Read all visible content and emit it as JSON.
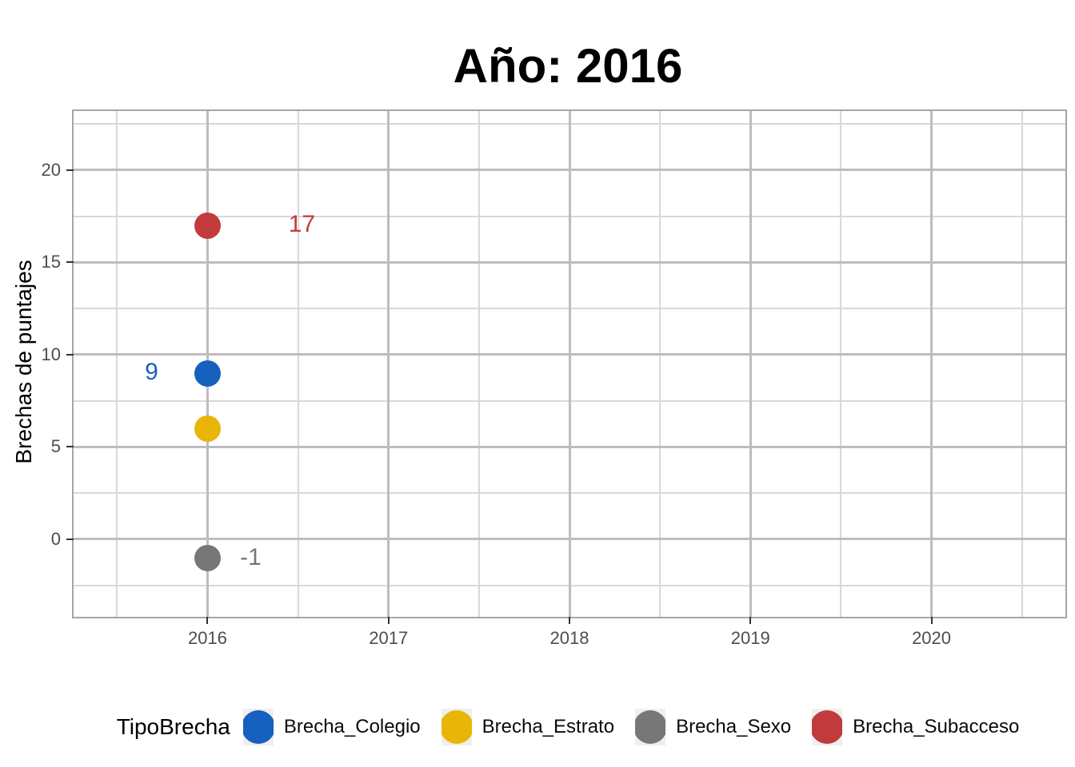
{
  "chart_data": {
    "type": "scatter",
    "title": "Año: 2016",
    "xlabel": "",
    "ylabel": "Brechas de puntajes",
    "legend_title": "TipoBrecha",
    "legend_position": "bottom",
    "grid": true,
    "x_domain": [
      2015.26,
      2020.74
    ],
    "y_domain": [
      -4.2,
      23.2
    ],
    "x_ticks": [
      2016,
      2017,
      2018,
      2019,
      2020
    ],
    "x_minor_ticks": [
      2015.5,
      2016.5,
      2017.5,
      2018.5,
      2019.5,
      2020.5
    ],
    "y_ticks": [
      0,
      5,
      10,
      15,
      20
    ],
    "y_minor_ticks": [
      -2.5,
      2.5,
      7.5,
      12.5,
      17.5,
      22.5
    ],
    "series": [
      {
        "name": "Brecha_Colegio",
        "color": "#1661BD",
        "points": [
          {
            "x": 2016,
            "y": 9,
            "label": "9",
            "label_dx": -70,
            "label_dy": -1
          }
        ]
      },
      {
        "name": "Brecha_Estrato",
        "color": "#E9B608",
        "points": [
          {
            "x": 2016,
            "y": 6
          }
        ]
      },
      {
        "name": "Brecha_Sexo",
        "color": "#777777",
        "points": [
          {
            "x": 2016,
            "y": -1,
            "label": "-1",
            "label_dx": 54,
            "label_dy": 0
          }
        ]
      },
      {
        "name": "Brecha_Subacceso",
        "color": "#C23B3C",
        "points": [
          {
            "x": 2016,
            "y": 17,
            "label": "17",
            "label_dx": 118,
            "label_dy": -1
          }
        ]
      }
    ]
  }
}
